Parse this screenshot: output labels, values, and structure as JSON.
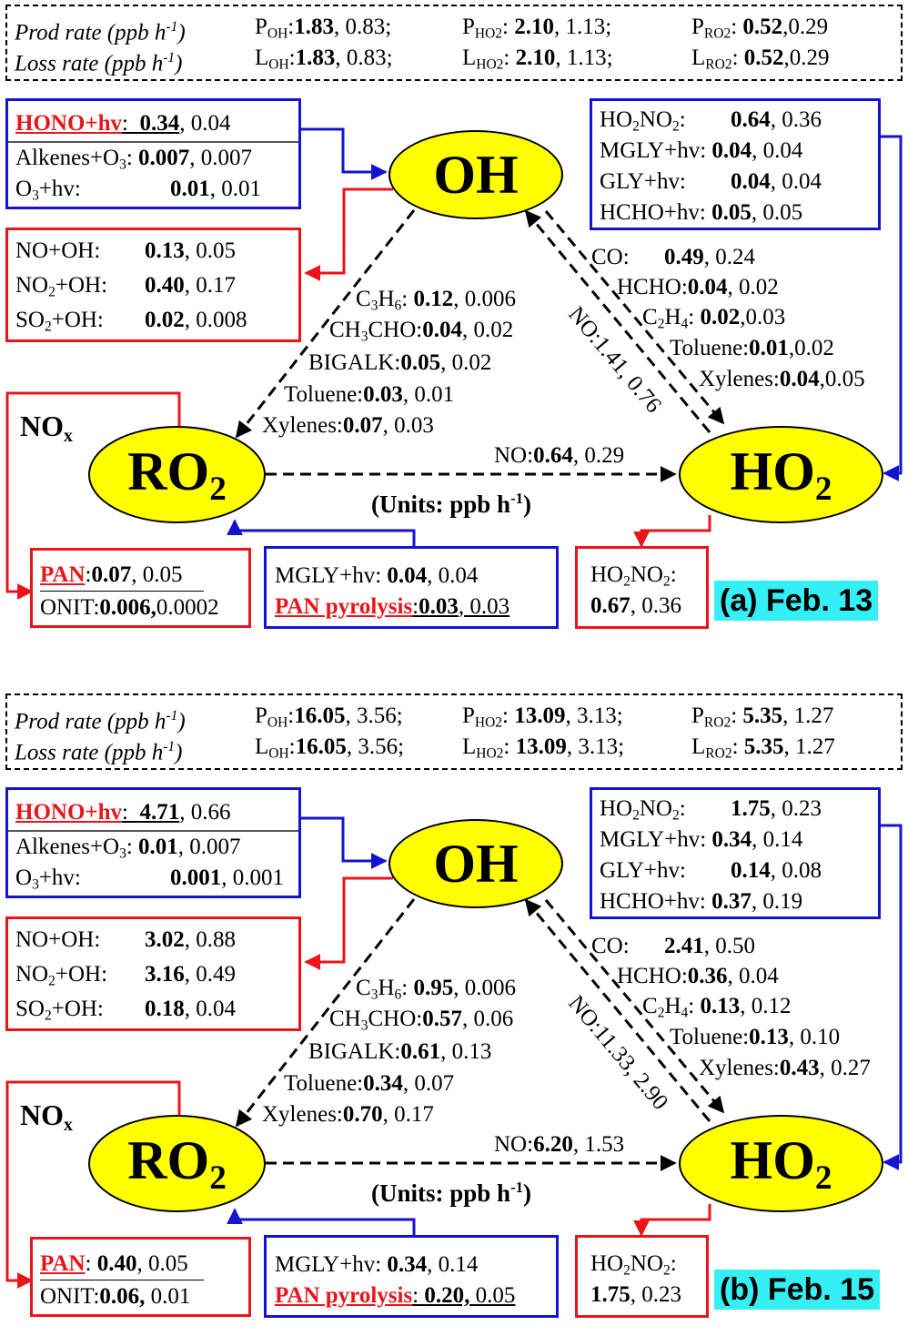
{
  "panels": [
    {
      "tag": "(a) Feb. 13",
      "header": {
        "prod_label": "Prod rate (ppb h",
        "loss_label": "Loss rate (ppb h",
        "unit_exp": "-1",
        "close": ")",
        "p_oh": "1.83",
        "p_oh2": ", 0.83;",
        "p_ho2": "2.10",
        "p_ho2_2": ", 1.13;",
        "p_ro2": "0.52",
        "p_ro2_2": ",0.29",
        "l_oh": "1.83",
        "l_oh2": ", 0.83;",
        "l_ho2": "2.10",
        "l_ho2_2": ", 1.13;",
        "l_ro2": "0.52",
        "l_ro2_2": ",0.29"
      },
      "oh_sources": {
        "hono_label": "HONO+hv",
        "hono_v": "0.34",
        "hono_v2": ", 0.04",
        "alk_label": "Alkenes+O",
        "alk_v": "0.007",
        "alk_v2": ", 0.007",
        "o3_label": "O",
        "o3_tail": "+hv:",
        "o3_v": "0.01",
        "o3_v2": ", 0.01"
      },
      "oh_sinks": {
        "no_label": "NO+OH:",
        "no_v": "0.13",
        "no_v2": ", 0.05",
        "no2_label": "NO",
        "no2_tail": "+OH:",
        "no2_v": "0.40",
        "no2_v2": ", 0.17",
        "so2_label": "SO",
        "so2_tail": "+OH:",
        "so2_v": "0.02",
        "so2_v2": ", 0.008"
      },
      "ho2_sources": {
        "r1_a": "HO",
        "r1_b": "NO",
        "r1_c": ":",
        "r1_v": "0.64",
        "r1_v2": ", 0.36",
        "r2": "MGLY+hv:",
        "r2_v": "0.04",
        "r2_v2": ", 0.04",
        "r3": "GLY+hv:",
        "r3_v": "0.04",
        "r3_v2": ", 0.04",
        "r4": "HCHO+hv:",
        "r4_v": "0.05",
        "r4_v2": ", 0.05"
      },
      "oh_to_ho2": {
        "co_l": "CO:",
        "co_v": "0.49",
        "co_v2": ", 0.24",
        "hcho_l": "HCHO:",
        "hcho_v": "0.04",
        "hcho_v2": ", 0.02",
        "c2h4_l": "C",
        "c2h4_m": "H",
        "c2h4_c": ":",
        "c2h4_v": "0.02",
        "c2h4_v2": ",0.03",
        "tol_l": "Toluene:",
        "tol_v": "0.01",
        "tol_v2": ",0.02",
        "xyl_l": "Xylenes:",
        "xyl_v": "0.04",
        "xyl_v2": ",0.05"
      },
      "ho2_to_oh": {
        "label": "NO:",
        "v": "1.41",
        "v2": ", 0.76"
      },
      "oh_to_ro2": {
        "c3h6_l": "C",
        "c3h6_m": "H",
        "c3h6_c": ":",
        "c3h6_v": "0.12",
        "c3h6_v2": ", 0.006",
        "ch3_l": "CH",
        "ch3_c": "CHO:",
        "ch3_v": "0.04",
        "ch3_v2": ", 0.02",
        "big_l": "BIGALK:",
        "big_v": "0.05",
        "big_v2": ", 0.02",
        "tol_l": "Toluene:",
        "tol_v": "0.03",
        "tol_v2": ", 0.01",
        "xyl_l": "Xylenes:",
        "xyl_v": "0.07",
        "xyl_v2": ", 0.03"
      },
      "ro2_to_ho2": {
        "label": "NO:",
        "v": "0.64",
        "v2": ", 0.29"
      },
      "units": {
        "text": "(Units: ppb h",
        "exp": "-1",
        "close": ")"
      },
      "nox": {
        "main": "NO",
        "sub": "x"
      },
      "ro2_sinks": {
        "pan_l": "PAN",
        "pan_c": ":",
        "pan_v": "0.07",
        "pan_v2": ", 0.05",
        "onit_l": "ONIT:",
        "onit_v": "0.006,",
        "onit_v2": "0.0002"
      },
      "ro2_sources": {
        "mgly_l": "MGLY+hv:",
        "mgly_v": "0.04",
        "mgly_v2": ", 0.04",
        "pan_l": "PAN pyrolysis",
        "pan_c": ":",
        "pan_v": "0.03",
        "pan_v2": ", 0.03"
      },
      "ho2_sinks": {
        "a": "HO",
        "b": "NO",
        "c": ":",
        "v": "0.67",
        "v2": ", 0.36"
      }
    },
    {
      "tag": "(b) Feb. 15",
      "header": {
        "prod_label": "Prod rate (ppb h",
        "loss_label": "Loss rate (ppb h",
        "unit_exp": "-1",
        "close": ")",
        "p_oh": "16.05",
        "p_oh2": ", 3.56;",
        "p_ho2": "13.09",
        "p_ho2_2": ", 3.13;",
        "p_ro2": "5.35",
        "p_ro2_2": ", 1.27",
        "l_oh": "16.05",
        "l_oh2": ", 3.56;",
        "l_ho2": "13.09",
        "l_ho2_2": ", 3.13;",
        "l_ro2": "5.35",
        "l_ro2_2": ", 1.27"
      },
      "oh_sources": {
        "hono_label": "HONO+hv",
        "hono_v": "4.71",
        "hono_v2": ", 0.66",
        "alk_label": "Alkenes+O",
        "alk_v": "0.01",
        "alk_v2": ", 0.007",
        "o3_label": "O",
        "o3_tail": "+hv:",
        "o3_v": "0.001",
        "o3_v2": ", 0.001"
      },
      "oh_sinks": {
        "no_label": "NO+OH:",
        "no_v": "3.02",
        "no_v2": ", 0.88",
        "no2_label": "NO",
        "no2_tail": "+OH:",
        "no2_v": "3.16",
        "no2_v2": ", 0.49",
        "so2_label": "SO",
        "so2_tail": "+OH:",
        "so2_v": "0.18",
        "so2_v2": ", 0.04"
      },
      "ho2_sources": {
        "r1_a": "HO",
        "r1_b": "NO",
        "r1_c": ":",
        "r1_v": "1.75",
        "r1_v2": ", 0.23",
        "r2": "MGLY+hv:",
        "r2_v": "0.34",
        "r2_v2": ", 0.14",
        "r3": "GLY+hv:",
        "r3_v": "0.14",
        "r3_v2": ", 0.08",
        "r4": "HCHO+hv:",
        "r4_v": "0.37",
        "r4_v2": ", 0.19"
      },
      "oh_to_ho2": {
        "co_l": "CO:",
        "co_v": "2.41",
        "co_v2": ", 0.50",
        "hcho_l": "HCHO:",
        "hcho_v": "0.36",
        "hcho_v2": ", 0.04",
        "c2h4_l": "C",
        "c2h4_m": "H",
        "c2h4_c": ":",
        "c2h4_v": "0.13",
        "c2h4_v2": ", 0.12",
        "tol_l": "Toluene:",
        "tol_v": "0.13",
        "tol_v2": ", 0.10",
        "xyl_l": "Xylenes:",
        "xyl_v": "0.43",
        "xyl_v2": ", 0.27"
      },
      "ho2_to_oh": {
        "label": "NO:",
        "v": "11.33",
        "v2": ", 2.90"
      },
      "oh_to_ro2": {
        "c3h6_l": "C",
        "c3h6_m": "H",
        "c3h6_c": ":",
        "c3h6_v": "0.95",
        "c3h6_v2": ", 0.006",
        "ch3_l": "CH",
        "ch3_c": "CHO:",
        "ch3_v": "0.57",
        "ch3_v2": ", 0.06",
        "big_l": "BIGALK:",
        "big_v": "0.61",
        "big_v2": ", 0.13",
        "tol_l": "Toluene:",
        "tol_v": "0.34",
        "tol_v2": ", 0.07",
        "xyl_l": "Xylenes:",
        "xyl_v": "0.70",
        "xyl_v2": ", 0.17"
      },
      "ro2_to_ho2": {
        "label": "NO:",
        "v": "6.20",
        "v2": ", 1.53"
      },
      "units": {
        "text": "(Units: ppb h",
        "exp": "-1",
        "close": ")"
      },
      "nox": {
        "main": "NO",
        "sub": "x"
      },
      "ro2_sinks": {
        "pan_l": "PAN",
        "pan_c": ": ",
        "pan_v": "0.40",
        "pan_v2": ", 0.05",
        "onit_l": "ONIT:",
        "onit_v": "0.06,",
        "onit_v2": " 0.01"
      },
      "ro2_sources": {
        "mgly_l": "MGLY+hv:",
        "mgly_v": "0.34",
        "mgly_v2": ", 0.14",
        "pan_l": "PAN pyrolysis",
        "pan_c": ": ",
        "pan_v": "0.20,",
        "pan_v2": " 0.05"
      },
      "ho2_sinks": {
        "a": "HO",
        "b": "NO",
        "c": ":",
        "v": "1.75",
        "v2": ", 0.23"
      }
    }
  ],
  "species": {
    "oh": "OH",
    "ro2": "RO",
    "ro2_sub": "2",
    "ho2": "HO",
    "ho2_sub": "2",
    "sub_oh": "OH",
    "sub_ho2": "HO2",
    "sub_ro2": "RO2",
    "p": "P",
    "l": "L",
    "n2": "2",
    "n3": "3",
    "n4": "4",
    "n6": "6"
  },
  "colors": {
    "red": "#e8161b",
    "blue": "#1414d0",
    "node_fill": "#ffff00",
    "tag_bg": "#34f0f5"
  }
}
